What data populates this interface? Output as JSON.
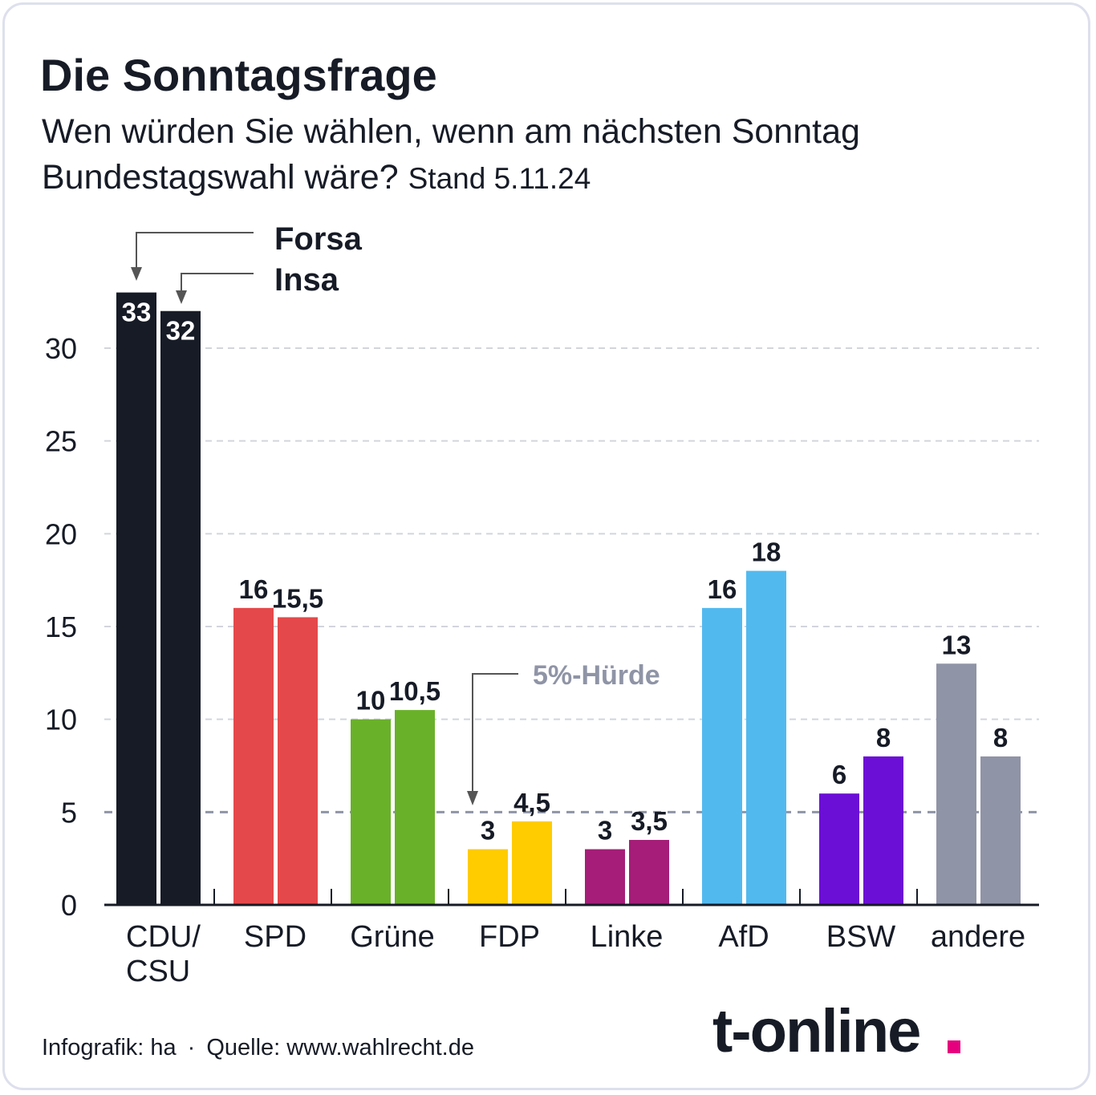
{
  "title": "Die Sonntagsfrage",
  "subtitle_line1": "Wen würden Sie wählen, wenn am nächsten Sonntag",
  "subtitle_line2": "Bundestagswahl wäre?",
  "stand": "Stand 5.11.24",
  "footer": {
    "credit": "Infografik: ha",
    "separator": "·",
    "source": "Quelle: www.wahlrecht.de"
  },
  "logo": {
    "text": "t-online",
    "dot_color": "#e6007e"
  },
  "chart_data": {
    "type": "bar",
    "title": "Die Sonntagsfrage",
    "categories": [
      "CDU/ CSU",
      "SPD",
      "Grüne",
      "FDP",
      "Linke",
      "AfD",
      "BSW",
      "andere"
    ],
    "category_lines": [
      [
        "CDU/",
        "CSU"
      ],
      [
        "SPD"
      ],
      [
        "Grüne"
      ],
      [
        "FDP"
      ],
      [
        "Linke"
      ],
      [
        "AfD"
      ],
      [
        "BSW"
      ],
      [
        "andere"
      ]
    ],
    "series": [
      {
        "name": "Forsa",
        "values": [
          33,
          16,
          10,
          3,
          3,
          16,
          6,
          13
        ]
      },
      {
        "name": "Insa",
        "values": [
          32,
          15.5,
          10.5,
          4.5,
          3.5,
          18,
          8,
          8
        ]
      }
    ],
    "value_labels": [
      [
        "33",
        "16",
        "10",
        "3",
        "3",
        "16",
        "6",
        "13"
      ],
      [
        "32",
        "15,5",
        "10,5",
        "4,5",
        "3,5",
        "18",
        "8",
        "8"
      ]
    ],
    "colors": {
      "Forsa": [
        "#161b26",
        "#e5484a",
        "#6ab12a",
        "#ffcc00",
        "#a51d78",
        "#52b9ef",
        "#6c0fd6",
        "#8f94a6"
      ],
      "Insa": [
        "#161b26",
        "#e5484a",
        "#6ab12a",
        "#ffcc00",
        "#a51d78",
        "#52b9ef",
        "#6c0fd6",
        "#8f94a6"
      ]
    },
    "yticks": [
      "0",
      "5",
      "10",
      "15",
      "20",
      "25",
      "30"
    ],
    "ylim": [
      0,
      33
    ],
    "grid": true,
    "legend_placement": "top-left (annotation arrows)",
    "threshold": {
      "value": 5,
      "label": "5%-Hürde"
    }
  }
}
